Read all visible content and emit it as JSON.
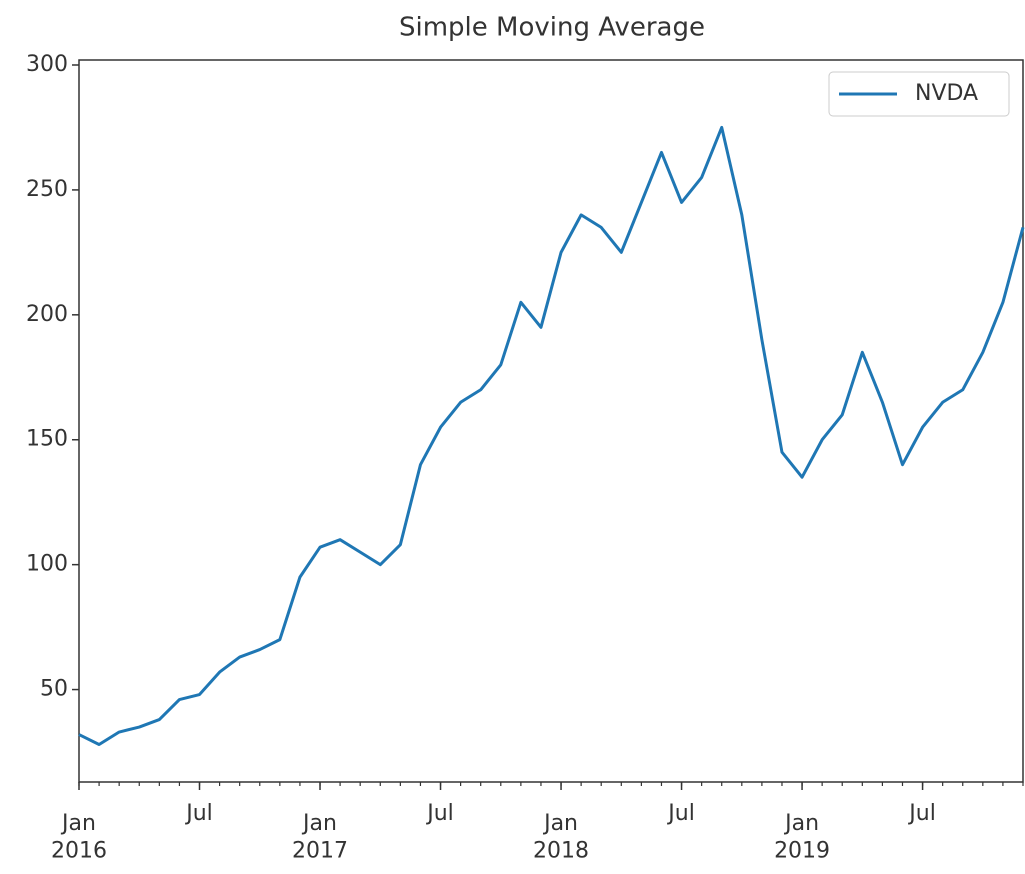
{
  "chart_data": {
    "type": "line",
    "title": "Simple Moving Average",
    "x": [
      "2016-01",
      "2016-02",
      "2016-03",
      "2016-04",
      "2016-05",
      "2016-06",
      "2016-07",
      "2016-08",
      "2016-09",
      "2016-10",
      "2016-11",
      "2016-12",
      "2017-01",
      "2017-02",
      "2017-03",
      "2017-04",
      "2017-05",
      "2017-06",
      "2017-07",
      "2017-08",
      "2017-09",
      "2017-10",
      "2017-11",
      "2017-12",
      "2018-01",
      "2018-02",
      "2018-03",
      "2018-04",
      "2018-05",
      "2018-06",
      "2018-07",
      "2018-08",
      "2018-09",
      "2018-10",
      "2018-11",
      "2018-12",
      "2019-01",
      "2019-02",
      "2019-03",
      "2019-04",
      "2019-05",
      "2019-06",
      "2019-07",
      "2019-08",
      "2019-09",
      "2019-10",
      "2019-11",
      "2019-12"
    ],
    "series": [
      {
        "name": "NVDA",
        "color": "#1f77b4",
        "values": [
          32,
          28,
          33,
          35,
          38,
          46,
          48,
          57,
          63,
          66,
          70,
          95,
          107,
          110,
          105,
          100,
          108,
          140,
          155,
          165,
          170,
          180,
          205,
          195,
          225,
          240,
          235,
          225,
          245,
          265,
          245,
          255,
          275,
          240,
          190,
          145,
          135,
          150,
          160,
          185,
          165,
          140,
          155,
          165,
          170,
          185,
          205,
          235
        ]
      }
    ],
    "xlim": [
      "2016-01",
      "2019-12"
    ],
    "xticks": [
      {
        "value": "2016-01",
        "label": "Jan\n2016"
      },
      {
        "value": "2016-07",
        "label": "Jul"
      },
      {
        "value": "2017-01",
        "label": "Jan\n2017"
      },
      {
        "value": "2017-07",
        "label": "Jul"
      },
      {
        "value": "2018-01",
        "label": "Jan\n2018"
      },
      {
        "value": "2018-07",
        "label": "Jul"
      },
      {
        "value": "2019-01",
        "label": "Jan\n2019"
      },
      {
        "value": "2019-07",
        "label": "Jul"
      }
    ],
    "ylim": [
      13,
      302
    ],
    "yticks": [
      50,
      100,
      150,
      200,
      250,
      300
    ],
    "grid": false,
    "legend": "upper right"
  }
}
